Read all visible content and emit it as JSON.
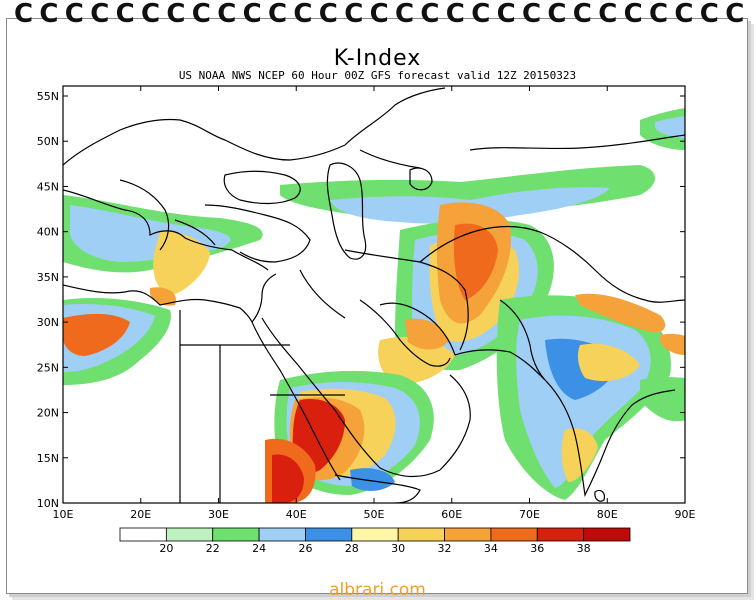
{
  "title": "K-Index",
  "subtitle": "US NOAA NWS NCEP 60 Hour 00Z GFS forecast valid 12Z 20150323",
  "watermark": "albrari.com",
  "map": {
    "lat_labels": [
      "55N",
      "50N",
      "45N",
      "40N",
      "35N",
      "30N",
      "25N",
      "20N",
      "15N",
      "10N"
    ],
    "lon_labels": [
      "10E",
      "20E",
      "30E",
      "40E",
      "50E",
      "60E",
      "70E",
      "80E",
      "90E"
    ]
  },
  "legend": {
    "labels": [
      "20",
      "22",
      "24",
      "26",
      "28",
      "30",
      "32",
      "34",
      "36",
      "38"
    ],
    "colors": [
      "#ffffff",
      "#bff0bf",
      "#6fe06f",
      "#9fcff5",
      "#3c90e6",
      "#fff6a8",
      "#f7d25a",
      "#f5a23a",
      "#f06a1e",
      "#d9200e",
      "#c00a0a"
    ]
  },
  "colors": {
    "land_outline": "#000000",
    "ring": "#111111",
    "watermark": "#f2a024"
  }
}
